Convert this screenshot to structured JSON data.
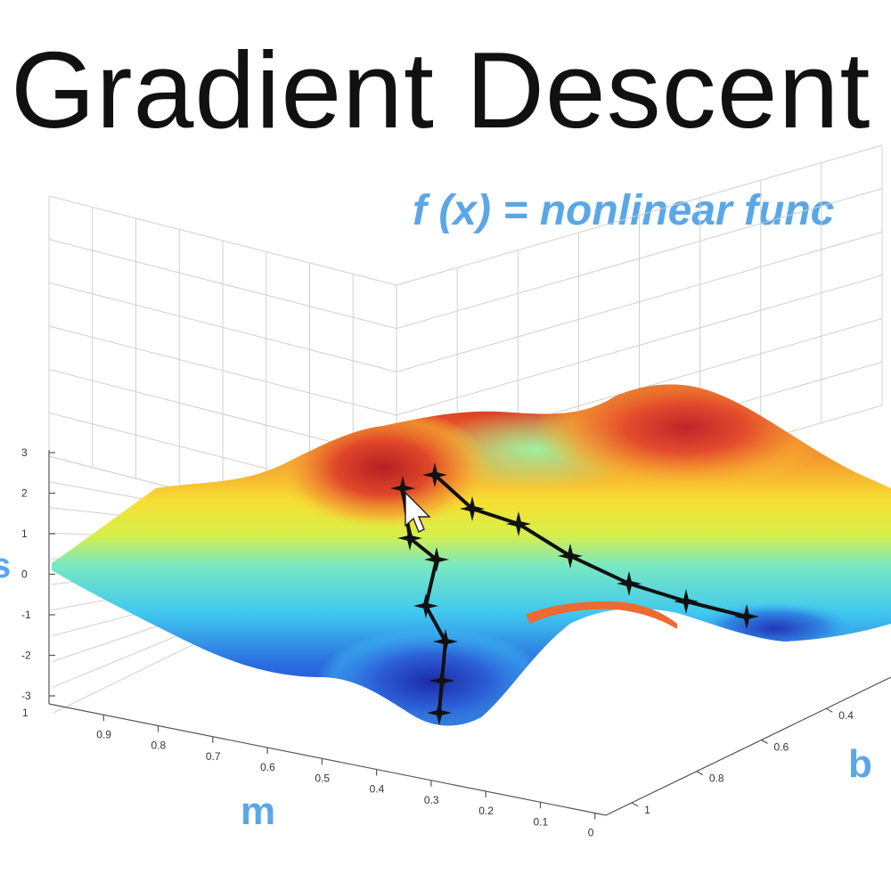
{
  "title": "Gradient Descent",
  "subtitle": "f (x) = nonlinear func",
  "colors": {
    "accent": "#5aa7e8",
    "path": "#111111"
  },
  "axes": {
    "m": {
      "label": "m",
      "ticks": [
        "0.9",
        "0.8",
        "0.7",
        "0.6",
        "0.5",
        "0.4",
        "0.3",
        "0.2",
        "0.1",
        "0"
      ],
      "corner_label": "1"
    },
    "b": {
      "label": "b",
      "ticks": [
        "0.4",
        "0.6",
        "0.8",
        "1"
      ]
    },
    "z": {
      "label": "s",
      "ticks": [
        "3",
        "2",
        "1",
        "0",
        "-1",
        "-2",
        "-3"
      ]
    }
  },
  "surface": {
    "colormap": "jet",
    "range": [
      -3,
      3
    ]
  },
  "descent_paths": [
    {
      "name": "",
      "steps": 7
    },
    {
      "name": "",
      "steps": 8
    }
  ],
  "cursor": "arrow-cursor"
}
